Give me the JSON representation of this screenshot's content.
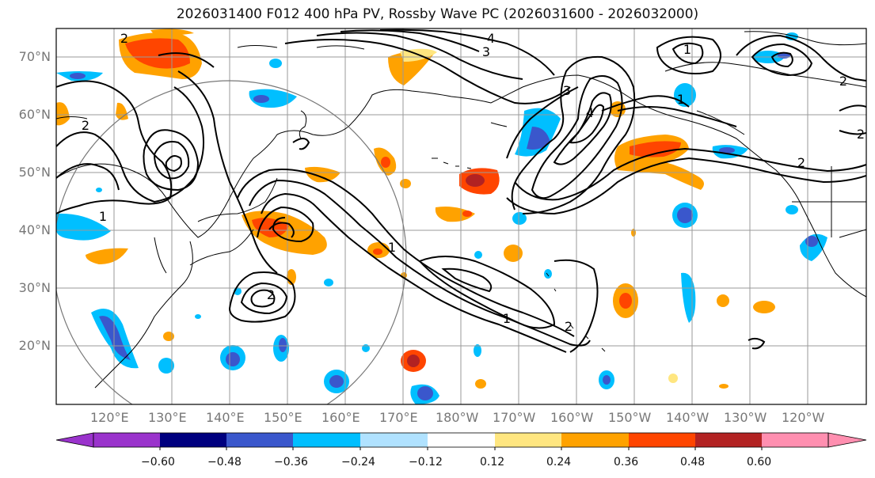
{
  "title": "2026031400 F012 400 hPa PV, Rossby Wave PC (2026031600 - 2026032000)",
  "lat_labels": [
    "70°N",
    "60°N",
    "50°N",
    "40°N",
    "30°N",
    "20°N"
  ],
  "lon_labels": [
    "120°E",
    "130°E",
    "140°E",
    "150°E",
    "160°E",
    "170°E",
    "180°W",
    "170°W",
    "160°W",
    "150°W",
    "140°W",
    "130°W",
    "120°W"
  ],
  "colorbar": {
    "ticks": [
      "−0.60",
      "−0.48",
      "−0.36",
      "−0.24",
      "−0.12",
      "0.12",
      "0.24",
      "0.36",
      "0.48",
      "0.60"
    ],
    "colors": [
      "#9a33cc",
      "#00007f",
      "#3a57cc",
      "#00bfff",
      "#b0e2ff",
      "#ffffff",
      "#ffe680",
      "#ffa200",
      "#ff4500",
      "#b22222",
      "#ff8fb0"
    ]
  },
  "contour_labels": [
    "1",
    "2",
    "3",
    "4",
    "1",
    "2",
    "1",
    "2",
    "1",
    "2",
    "3",
    "4",
    "1",
    "2",
    "2",
    "2"
  ]
}
